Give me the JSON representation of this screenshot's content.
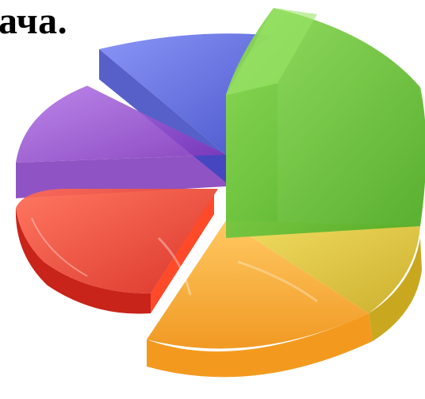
{
  "heading": {
    "text": "ача."
  },
  "illustration": {
    "kind": "3d-exploded-pie-graphic",
    "slice_count": 7,
    "colors": {
      "blue": "#5566e8",
      "green": "#66c433",
      "yellow": "#d9c22c",
      "orange": "#f4a52a",
      "red": "#ec3d2c",
      "purple": "#9a4fd0",
      "background": "#ffffff"
    }
  }
}
